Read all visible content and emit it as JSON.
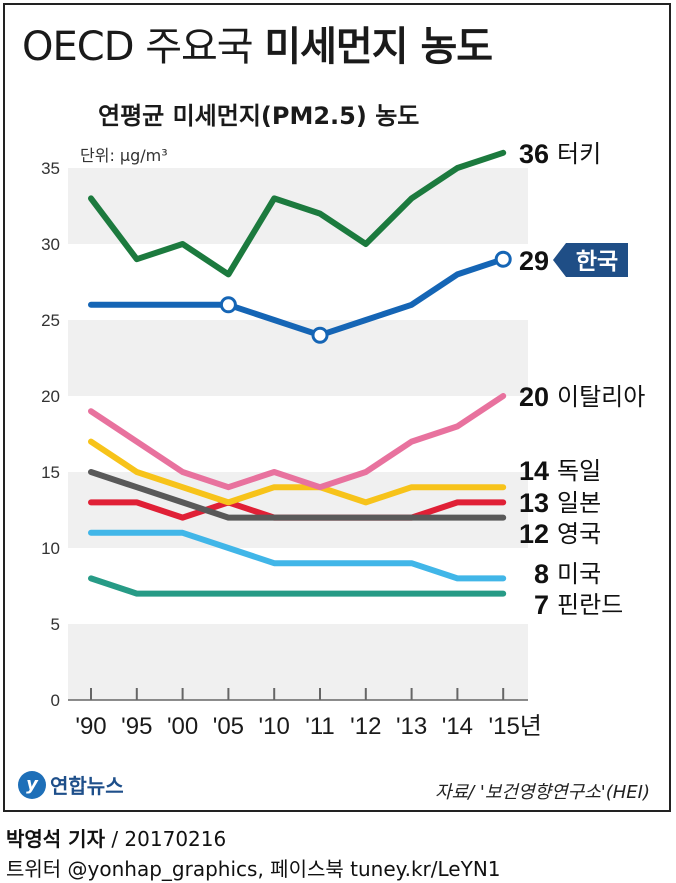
{
  "header": {
    "title_light": "OECD 주요국",
    "title_bold": "미세먼지 농도",
    "subtitle": "연평균 미세먼지(PM2.5) 농도",
    "unit": "단위: μg/m³"
  },
  "chart_data": {
    "type": "line",
    "title": "OECD 주요국 미세먼지 농도",
    "subtitle": "연평균 미세먼지(PM2.5) 농도",
    "ylabel": "μg/m³",
    "ylim": [
      0,
      35
    ],
    "yticks": [
      "0",
      "5",
      "10",
      "15",
      "20",
      "25",
      "30",
      "35"
    ],
    "categories": [
      "'90",
      "'95",
      "'00",
      "'05",
      "'10",
      "'11",
      "'12",
      "'13",
      "'14",
      "'15년"
    ],
    "series": [
      {
        "name": "터키",
        "end_value": "36",
        "color": "#1c7a3e",
        "values": [
          33,
          29,
          30,
          28,
          33,
          32,
          30,
          33,
          35,
          36
        ]
      },
      {
        "name": "한국",
        "end_value": "29",
        "color": "#1565b5",
        "values": [
          26,
          26,
          26,
          26,
          25,
          24,
          25,
          26,
          28,
          29
        ],
        "highlight": true,
        "markers": [
          3,
          5,
          9
        ]
      },
      {
        "name": "이탈리아",
        "end_value": "20",
        "color": "#e8729e",
        "values": [
          19,
          17,
          15,
          14,
          15,
          14,
          15,
          17,
          18,
          20
        ]
      },
      {
        "name": "독일",
        "end_value": "14",
        "color": "#f7c31a",
        "values": [
          17,
          15,
          14,
          13,
          14,
          14,
          13,
          14,
          14,
          14
        ]
      },
      {
        "name": "일본",
        "end_value": "13",
        "color": "#e02036",
        "values": [
          13,
          13,
          12,
          13,
          12,
          12,
          12,
          12,
          13,
          13
        ]
      },
      {
        "name": "영국",
        "end_value": "12",
        "color": "#595959",
        "values": [
          15,
          14,
          13,
          12,
          12,
          12,
          12,
          12,
          12,
          12
        ]
      },
      {
        "name": "미국",
        "end_value": "8",
        "color": "#41b6e8",
        "values": [
          11,
          11,
          11,
          10,
          9,
          9,
          9,
          9,
          8,
          8
        ]
      },
      {
        "name": "핀란드",
        "end_value": "7",
        "color": "#279b86",
        "values": [
          8,
          7,
          7,
          7,
          7,
          7,
          7,
          7,
          7,
          7
        ]
      }
    ]
  },
  "footer": {
    "logo_text": "연합뉴스",
    "source": "자료/ '보건영향연구소'(HEI)",
    "reporter": "박영석 기자",
    "date": " / 20170216",
    "sns": "트위터 @yonhap_graphics, 페이스북 tuney.kr/LeYN1"
  }
}
